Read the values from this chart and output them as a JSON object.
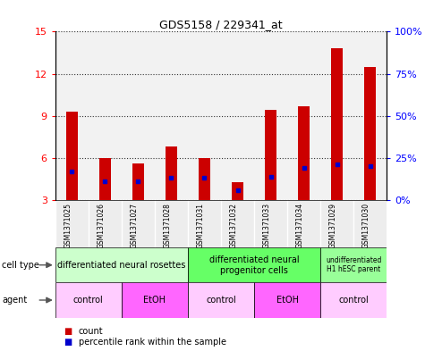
{
  "title": "GDS5158 / 229341_at",
  "samples": [
    "GSM1371025",
    "GSM1371026",
    "GSM1371027",
    "GSM1371028",
    "GSM1371031",
    "GSM1371032",
    "GSM1371033",
    "GSM1371034",
    "GSM1371029",
    "GSM1371030"
  ],
  "counts": [
    9.3,
    6.0,
    5.6,
    6.8,
    6.0,
    4.3,
    9.4,
    9.7,
    13.8,
    12.5
  ],
  "percentile_ranks": [
    17,
    11,
    11,
    13,
    13,
    6,
    14,
    19,
    21,
    20
  ],
  "ylim": [
    3,
    15
  ],
  "yticks": [
    3,
    6,
    9,
    12,
    15
  ],
  "right_yticks": [
    0,
    25,
    50,
    75,
    100
  ],
  "bar_color": "#cc0000",
  "percentile_color": "#0000cc",
  "cell_type_groups": [
    {
      "label": "differentiated neural rosettes",
      "start": 0,
      "end": 4,
      "color": "#ccffcc"
    },
    {
      "label": "differentiated neural\nprogenitor cells",
      "start": 4,
      "end": 8,
      "color": "#66ff66"
    },
    {
      "label": "undifferentiated\nH1 hESC parent",
      "start": 8,
      "end": 10,
      "color": "#99ff99"
    }
  ],
  "agent_groups": [
    {
      "label": "control",
      "start": 0,
      "end": 2,
      "color": "#ffccff"
    },
    {
      "label": "EtOH",
      "start": 2,
      "end": 4,
      "color": "#ff66ff"
    },
    {
      "label": "control",
      "start": 4,
      "end": 6,
      "color": "#ffccff"
    },
    {
      "label": "EtOH",
      "start": 6,
      "end": 8,
      "color": "#ff66ff"
    },
    {
      "label": "control",
      "start": 8,
      "end": 10,
      "color": "#ffccff"
    }
  ],
  "sample_bg_color": "#cccccc",
  "bar_width": 0.35
}
